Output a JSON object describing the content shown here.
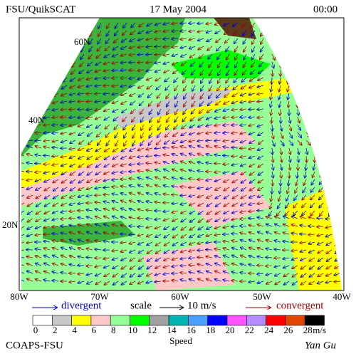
{
  "header": {
    "title": "FSU/QuikSCAT",
    "date": "17 May 2004",
    "time": "00:00"
  },
  "map": {
    "lat_labels": [
      "60N",
      "40N",
      "20N"
    ],
    "lon_labels": [
      "80W",
      "70W",
      "60W",
      "50W",
      "40W"
    ]
  },
  "legend": {
    "divergent": "divergent",
    "scale": "scale",
    "scale_value": "10 m/s",
    "convergent": "convergent"
  },
  "colorbar": {
    "labels": [
      0,
      2,
      4,
      6,
      8,
      10,
      12,
      14,
      16,
      18,
      20,
      22,
      24,
      26,
      28
    ],
    "unit": "m/s",
    "title": "Speed",
    "colors": [
      "#ffffff",
      "#c8c8c8",
      "#ffff00",
      "#ffc8c8",
      "#96ff96",
      "#00ff00",
      "#a0a0a0",
      "#00b4b4",
      "#4ba0ff",
      "#0000ff",
      "#ff55ff",
      "#b48cff",
      "#ff0000",
      "#e14600",
      "#000000"
    ]
  },
  "footer": {
    "left": "COAPS-FSU",
    "right": "Yan Gu"
  }
}
